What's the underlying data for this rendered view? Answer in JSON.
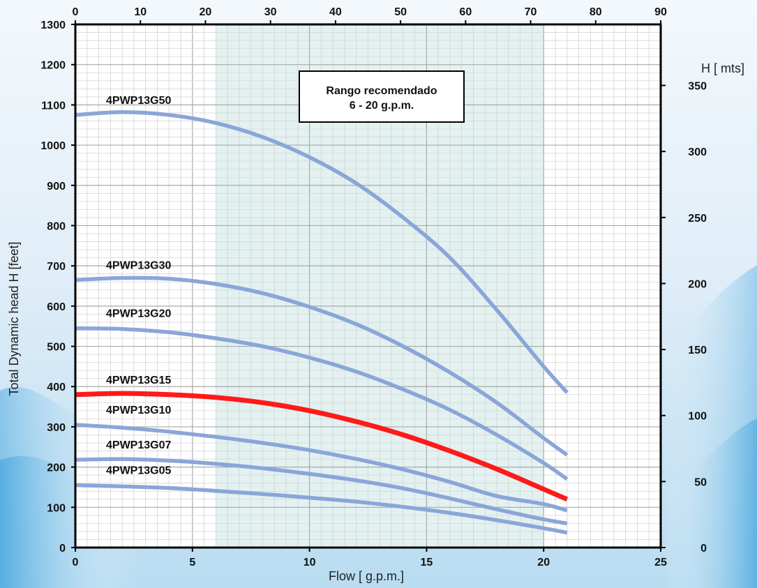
{
  "chart_data": {
    "type": "line",
    "xlabel": "Flow [ g.p.m.]",
    "ylabel": "Total Dynamic head H [feet]",
    "y2label": "H [ mts]",
    "xlim": [
      0,
      25
    ],
    "ylim": [
      0,
      1300
    ],
    "x2lim": [
      0,
      90
    ],
    "y2lim": [
      0,
      396.24
    ],
    "x_ticks": [
      0,
      5,
      10,
      15,
      20,
      25
    ],
    "y_ticks": [
      0,
      100,
      200,
      300,
      400,
      500,
      600,
      700,
      800,
      900,
      1000,
      1100,
      1200,
      1300
    ],
    "x2_ticks": [
      0,
      10,
      20,
      30,
      40,
      50,
      60,
      70,
      80,
      90
    ],
    "y2_ticks": [
      0,
      50,
      100,
      150,
      200,
      250,
      300,
      350
    ],
    "grid": true,
    "recommended_range": {
      "x_start": 6,
      "x_end": 20,
      "line1": "Rango recomendado",
      "line2": "6 - 20 g.p.m."
    },
    "series": [
      {
        "name": "4PWP13G50",
        "color": "#8aa6d8",
        "highlight": false,
        "x": [
          0,
          2,
          4,
          6,
          8,
          10,
          12,
          14,
          16,
          18,
          20,
          21
        ],
        "y": [
          1075,
          1082,
          1075,
          1055,
          1020,
          970,
          905,
          820,
          720,
          590,
          450,
          385
        ]
      },
      {
        "name": "4PWP13G30",
        "color": "#8aa6d8",
        "highlight": false,
        "x": [
          0,
          2,
          4,
          6,
          8,
          10,
          12,
          14,
          16,
          18,
          20,
          21
        ],
        "y": [
          665,
          670,
          668,
          655,
          632,
          598,
          555,
          500,
          435,
          360,
          272,
          230
        ]
      },
      {
        "name": "4PWP13G20",
        "color": "#8aa6d8",
        "highlight": false,
        "x": [
          0,
          2,
          4,
          6,
          8,
          10,
          12,
          14,
          16,
          18,
          20,
          21
        ],
        "y": [
          545,
          543,
          535,
          520,
          500,
          472,
          437,
          393,
          342,
          280,
          210,
          170
        ]
      },
      {
        "name": "4PWP13G15",
        "color": "#ff1a1a",
        "highlight": true,
        "x": [
          0,
          2,
          4,
          6,
          8,
          10,
          12,
          14,
          16,
          18,
          20,
          21
        ],
        "y": [
          380,
          383,
          380,
          373,
          360,
          340,
          313,
          280,
          240,
          195,
          145,
          120
        ]
      },
      {
        "name": "4PWP13G10",
        "color": "#8aa6d8",
        "highlight": false,
        "x": [
          0,
          2,
          4,
          6,
          8,
          10,
          12,
          14,
          16,
          18,
          20,
          21
        ],
        "y": [
          305,
          298,
          288,
          275,
          260,
          242,
          220,
          194,
          163,
          128,
          108,
          92
        ]
      },
      {
        "name": "4PWP13G07",
        "color": "#8aa6d8",
        "highlight": false,
        "x": [
          0,
          2,
          4,
          6,
          8,
          10,
          12,
          14,
          16,
          18,
          20,
          21
        ],
        "y": [
          218,
          220,
          216,
          208,
          197,
          183,
          167,
          147,
          122,
          95,
          70,
          60
        ]
      },
      {
        "name": "4PWP13G05",
        "color": "#8aa6d8",
        "highlight": false,
        "x": [
          0,
          2,
          4,
          6,
          8,
          10,
          12,
          14,
          16,
          18,
          20,
          21
        ],
        "y": [
          155,
          152,
          148,
          141,
          133,
          124,
          114,
          101,
          86,
          68,
          48,
          37
        ]
      }
    ]
  }
}
